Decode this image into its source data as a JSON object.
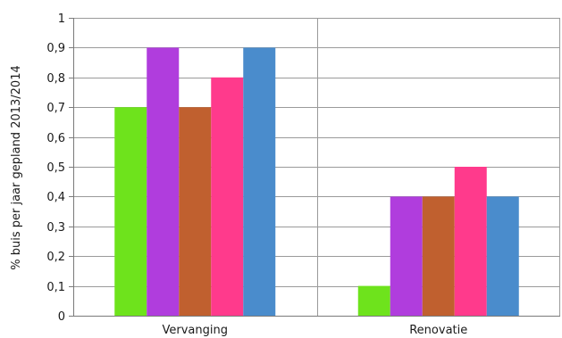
{
  "chart_data": {
    "type": "bar",
    "title": "",
    "xlabel": "",
    "ylabel": "% buis per jaar gepland 2013/2014",
    "ylim": [
      0,
      1
    ],
    "yticks": [
      0,
      0.1,
      0.2,
      0.3,
      0.4,
      0.5,
      0.6,
      0.7,
      0.8,
      0.9,
      1
    ],
    "ytick_labels": [
      "0",
      "0,1",
      "0,2",
      "0,3",
      "0,4",
      "0,5",
      "0,6",
      "0,7",
      "0,8",
      "0,9",
      "1"
    ],
    "grid": true,
    "legend": "none",
    "categories": [
      "Vervanging",
      "Renovatie"
    ],
    "series": [
      {
        "color": "#6ee31c",
        "values": [
          0.7,
          0.1
        ]
      },
      {
        "color": "#b03ddd",
        "values": [
          0.9,
          0.4
        ]
      },
      {
        "color": "#c0602f",
        "values": [
          0.7,
          0.4
        ]
      },
      {
        "color": "#ff3a8c",
        "values": [
          0.8,
          0.5
        ]
      },
      {
        "color": "#4a8ccc",
        "values": [
          0.9,
          0.4
        ]
      }
    ]
  }
}
